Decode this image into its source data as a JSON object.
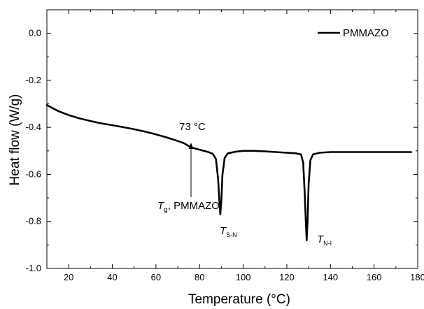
{
  "chart_data": {
    "type": "line",
    "xlabel": "Temperature (°C)",
    "ylabel": "Heat flow (W/g)",
    "xlim": [
      10,
      180
    ],
    "ylim": [
      -1.0,
      0.1
    ],
    "xticks": [
      20,
      40,
      60,
      80,
      100,
      120,
      140,
      160,
      180
    ],
    "yticks": [
      0.0,
      -0.2,
      -0.4,
      -0.6,
      -0.8,
      -1.0
    ],
    "xtick_labels": [
      "20",
      "40",
      "60",
      "80",
      "100",
      "120",
      "140",
      "160",
      "180"
    ],
    "ytick_labels": [
      "0.0",
      "-0.2",
      "-0.4",
      "-0.6",
      "-0.8",
      "-1.0"
    ],
    "grid": false,
    "legend_position": "top-right",
    "series": [
      {
        "name": "PMMAZO",
        "color": "#000000",
        "points": [
          [
            10,
            -0.305
          ],
          [
            15,
            -0.33
          ],
          [
            20,
            -0.348
          ],
          [
            25,
            -0.362
          ],
          [
            30,
            -0.373
          ],
          [
            35,
            -0.383
          ],
          [
            40,
            -0.391
          ],
          [
            45,
            -0.399
          ],
          [
            50,
            -0.408
          ],
          [
            55,
            -0.418
          ],
          [
            60,
            -0.43
          ],
          [
            65,
            -0.443
          ],
          [
            70,
            -0.458
          ],
          [
            73,
            -0.468
          ],
          [
            76,
            -0.485
          ],
          [
            80,
            -0.495
          ],
          [
            84,
            -0.505
          ],
          [
            86,
            -0.512
          ],
          [
            87.5,
            -0.535
          ],
          [
            88.5,
            -0.62
          ],
          [
            89,
            -0.7
          ],
          [
            89.5,
            -0.77
          ],
          [
            90,
            -0.71
          ],
          [
            90.5,
            -0.6
          ],
          [
            91.5,
            -0.53
          ],
          [
            93,
            -0.51
          ],
          [
            97,
            -0.503
          ],
          [
            100,
            -0.5
          ],
          [
            105,
            -0.5
          ],
          [
            110,
            -0.502
          ],
          [
            115,
            -0.505
          ],
          [
            120,
            -0.508
          ],
          [
            124,
            -0.51
          ],
          [
            126.5,
            -0.515
          ],
          [
            127.5,
            -0.55
          ],
          [
            128.2,
            -0.68
          ],
          [
            128.7,
            -0.8
          ],
          [
            129.1,
            -0.88
          ],
          [
            129.5,
            -0.8
          ],
          [
            130,
            -0.64
          ],
          [
            130.8,
            -0.54
          ],
          [
            132,
            -0.515
          ],
          [
            135,
            -0.508
          ],
          [
            140,
            -0.505
          ],
          [
            150,
            -0.505
          ],
          [
            160,
            -0.505
          ],
          [
            170,
            -0.505
          ],
          [
            177,
            -0.505
          ]
        ]
      }
    ],
    "annotations": {
      "tg_value": "73 °C",
      "tg_symbol": "T",
      "tg_sub": "g",
      "tg_suffix": ", PMMAZO",
      "tsn_symbol": "T",
      "tsn_sub": "S-N",
      "tni_symbol": "T",
      "tni_sub": "N-I"
    }
  }
}
